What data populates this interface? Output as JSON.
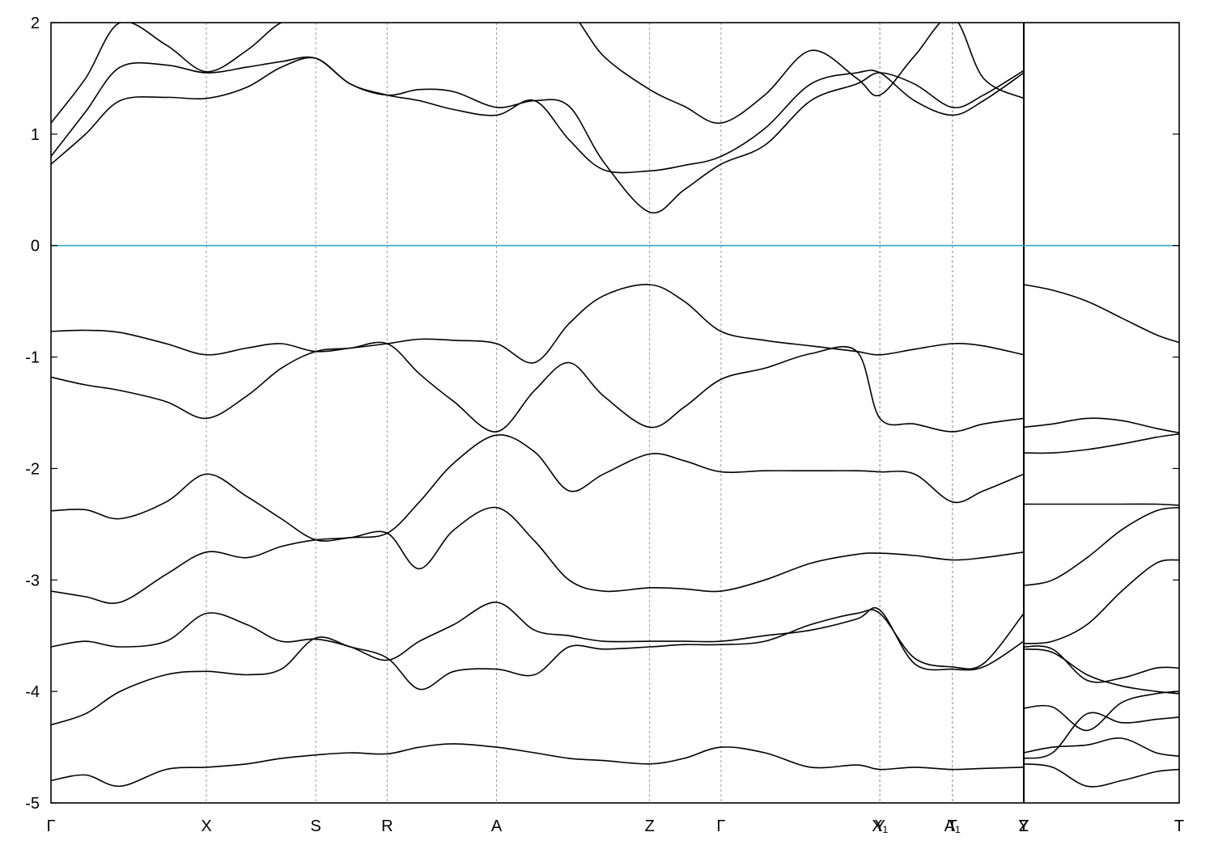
{
  "chart_data": {
    "type": "line",
    "title": "",
    "xlabel": "",
    "ylabel": "",
    "ylim": [
      -5,
      2
    ],
    "y_ticks": [
      "2",
      "1",
      "0",
      "-1",
      "-2",
      "-3",
      "-4",
      "-5"
    ],
    "y_tick_values": [
      2,
      1,
      0,
      -1,
      -2,
      -3,
      -4,
      -5
    ],
    "fermi_level": 0,
    "colors": {
      "bands": "#000000",
      "fermi": "#3aa6c6",
      "gridlines": "#999999"
    },
    "x_points": [
      "Γ",
      "X",
      "S",
      "R",
      "A",
      "Z",
      "Γ",
      "Y",
      "X₁",
      "A₁",
      "T",
      "Y",
      "Z",
      "T"
    ],
    "x_positions": [
      0,
      1.35,
      2.3,
      2.92,
      3.87,
      5.2,
      5.82,
      7.2,
      7.2,
      7.83,
      7.83,
      8.45,
      8.45,
      9.8
    ],
    "xlim": [
      0,
      9.8
    ],
    "path_break_at": 8.45,
    "series": [
      {
        "name": "",
        "x": [
          0,
          0.3,
          0.6,
          1.0,
          1.35,
          1.7,
          2.0,
          2.3,
          2.6,
          2.92,
          3.2,
          3.5,
          3.87,
          4.2,
          4.5,
          4.8,
          5.2,
          5.5,
          5.82,
          6.2,
          6.6,
          7.0,
          7.2,
          7.5,
          7.83,
          8.1,
          8.45
        ],
        "y": [
          -4.8,
          -4.75,
          -4.85,
          -4.7,
          -4.68,
          -4.65,
          -4.6,
          -4.57,
          -4.55,
          -4.56,
          -4.5,
          -4.47,
          -4.5,
          -4.55,
          -4.6,
          -4.62,
          -4.65,
          -4.6,
          -4.5,
          -4.55,
          -4.68,
          -4.66,
          -4.7,
          -4.68,
          -4.7,
          -4.69,
          -4.68
        ]
      },
      {
        "name": "",
        "x": [
          0,
          0.3,
          0.6,
          1.0,
          1.35,
          1.7,
          2.0,
          2.3,
          2.6,
          2.92,
          3.2,
          3.5,
          3.87,
          4.2,
          4.5,
          4.8,
          5.2,
          5.5,
          5.82,
          6.2,
          6.6,
          7.0,
          7.2,
          7.5,
          7.83,
          8.1,
          8.45
        ],
        "y": [
          -4.3,
          -4.2,
          -4.0,
          -3.85,
          -3.82,
          -3.85,
          -3.8,
          -3.52,
          -3.6,
          -3.7,
          -3.98,
          -3.82,
          -3.8,
          -3.85,
          -3.6,
          -3.62,
          -3.6,
          -3.58,
          -3.58,
          -3.55,
          -3.4,
          -3.3,
          -3.3,
          -3.7,
          -3.78,
          -3.75,
          -3.3
        ]
      },
      {
        "name": "",
        "x": [
          0,
          0.3,
          0.6,
          1.0,
          1.35,
          1.7,
          2.0,
          2.3,
          2.6,
          2.92,
          3.2,
          3.5,
          3.87,
          4.2,
          4.5,
          4.8,
          5.2,
          5.5,
          5.82,
          6.2,
          6.6,
          7.0,
          7.2,
          7.5,
          7.83,
          8.1,
          8.45
        ],
        "y": [
          -3.6,
          -3.55,
          -3.6,
          -3.55,
          -3.3,
          -3.4,
          -3.55,
          -3.53,
          -3.6,
          -3.72,
          -3.55,
          -3.4,
          -3.2,
          -3.45,
          -3.5,
          -3.55,
          -3.55,
          -3.55,
          -3.55,
          -3.5,
          -3.45,
          -3.35,
          -3.27,
          -3.75,
          -3.8,
          -3.78,
          -3.55
        ]
      },
      {
        "name": "",
        "x": [
          0,
          0.3,
          0.6,
          1.0,
          1.35,
          1.7,
          2.0,
          2.3,
          2.6,
          2.92,
          3.2,
          3.5,
          3.87,
          4.2,
          4.5,
          4.8,
          5.2,
          5.5,
          5.82,
          6.2,
          6.6,
          7.0,
          7.2,
          7.5,
          7.83,
          8.1,
          8.45
        ],
        "y": [
          -3.1,
          -3.15,
          -3.2,
          -2.95,
          -2.75,
          -2.8,
          -2.7,
          -2.64,
          -2.62,
          -2.58,
          -2.9,
          -2.55,
          -2.35,
          -2.65,
          -3.0,
          -3.1,
          -3.07,
          -3.08,
          -3.1,
          -3.0,
          -2.85,
          -2.77,
          -2.76,
          -2.78,
          -2.82,
          -2.8,
          -2.75
        ]
      },
      {
        "name": "",
        "x": [
          0,
          0.3,
          0.6,
          1.0,
          1.35,
          1.7,
          2.0,
          2.3,
          2.6,
          2.92,
          3.2,
          3.5,
          3.87,
          4.2,
          4.5,
          4.8,
          5.2,
          5.5,
          5.82,
          6.2,
          6.6,
          7.0,
          7.2,
          7.5,
          7.83,
          8.1,
          8.45
        ],
        "y": [
          -2.38,
          -2.37,
          -2.45,
          -2.3,
          -2.05,
          -2.25,
          -2.45,
          -2.64,
          -2.62,
          -2.58,
          -2.3,
          -1.95,
          -1.7,
          -1.85,
          -2.2,
          -2.05,
          -1.87,
          -1.93,
          -2.03,
          -2.02,
          -2.02,
          -2.02,
          -2.03,
          -2.05,
          -2.3,
          -2.2,
          -2.05
        ]
      },
      {
        "name": "",
        "x": [
          0,
          0.3,
          0.6,
          1.0,
          1.35,
          1.7,
          2.0,
          2.3,
          2.6,
          2.92,
          3.2,
          3.5,
          3.87,
          4.2,
          4.5,
          4.8,
          5.2,
          5.5,
          5.82,
          6.2,
          6.6,
          7.0,
          7.2,
          7.5,
          7.83,
          8.1,
          8.45
        ],
        "y": [
          -1.18,
          -1.25,
          -1.3,
          -1.4,
          -1.55,
          -1.35,
          -1.1,
          -0.95,
          -0.92,
          -0.88,
          -1.15,
          -1.4,
          -1.67,
          -1.3,
          -1.05,
          -1.35,
          -1.63,
          -1.45,
          -1.2,
          -1.1,
          -0.97,
          -0.95,
          -1.55,
          -1.6,
          -1.67,
          -1.6,
          -1.55
        ]
      },
      {
        "name": "",
        "x": [
          0,
          0.3,
          0.6,
          1.0,
          1.35,
          1.7,
          2.0,
          2.3,
          2.6,
          2.92,
          3.2,
          3.5,
          3.87,
          4.2,
          4.5,
          4.8,
          5.2,
          5.5,
          5.82,
          6.2,
          6.6,
          7.0,
          7.2,
          7.5,
          7.83,
          8.1,
          8.45
        ],
        "y": [
          -0.77,
          -0.76,
          -0.78,
          -0.88,
          -0.98,
          -0.92,
          -0.88,
          -0.95,
          -0.92,
          -0.88,
          -0.84,
          -0.85,
          -0.88,
          -1.05,
          -0.7,
          -0.45,
          -0.35,
          -0.5,
          -0.77,
          -0.85,
          -0.9,
          -0.95,
          -0.98,
          -0.93,
          -0.88,
          -0.9,
          -0.98
        ]
      },
      {
        "name": "",
        "x": [
          0,
          0.3,
          0.6,
          1.0,
          1.35,
          1.7,
          2.0,
          2.3,
          2.6,
          2.92,
          3.2,
          3.5,
          3.87,
          4.2,
          4.5,
          4.8,
          5.2,
          5.5,
          5.82,
          6.2,
          6.6,
          7.0,
          7.2,
          7.5,
          7.83,
          8.1,
          8.45
        ],
        "y": [
          0.73,
          1.0,
          1.3,
          1.33,
          1.32,
          1.42,
          1.6,
          1.68,
          1.45,
          1.35,
          1.3,
          1.22,
          1.17,
          1.3,
          0.95,
          0.68,
          0.67,
          0.72,
          0.8,
          1.05,
          1.45,
          1.55,
          1.55,
          1.3,
          1.17,
          1.3,
          1.55
        ]
      },
      {
        "name": "",
        "x": [
          0,
          0.3,
          0.6,
          1.0,
          1.35,
          1.7,
          2.0,
          2.3,
          2.6,
          2.92,
          3.2,
          3.5,
          3.87,
          4.2,
          4.5,
          4.8,
          5.2,
          5.5,
          5.82,
          6.2,
          6.6,
          7.0,
          7.2,
          7.5,
          7.83,
          8.1,
          8.45
        ],
        "y": [
          0.8,
          1.2,
          1.6,
          1.62,
          1.55,
          1.6,
          1.65,
          1.68,
          1.45,
          1.35,
          1.4,
          1.38,
          1.24,
          1.3,
          1.25,
          0.75,
          0.3,
          0.5,
          0.73,
          0.9,
          1.3,
          1.45,
          1.55,
          1.45,
          1.24,
          1.35,
          1.57
        ]
      },
      {
        "name": "",
        "x": [
          0,
          0.3,
          0.6,
          1.0,
          1.35,
          1.7,
          2.0,
          2.3,
          2.6,
          2.92,
          3.2,
          3.5,
          3.87,
          4.2,
          4.5,
          4.8,
          5.2,
          5.5,
          5.82,
          6.2,
          6.6,
          7.0,
          7.2,
          7.5,
          7.83,
          8.1,
          8.45
        ],
        "y": [
          1.1,
          1.5,
          2.0,
          1.8,
          1.56,
          1.75,
          2.0,
          2.05,
          2.1,
          2.1,
          2.1,
          2.1,
          2.1,
          2.1,
          2.1,
          1.7,
          1.4,
          1.25,
          1.1,
          1.35,
          1.75,
          1.5,
          1.35,
          1.7,
          2.05,
          1.5,
          1.32
        ]
      },
      {
        "name": "",
        "x": [
          8.45,
          8.7,
          9.0,
          9.3,
          9.6,
          9.8
        ],
        "y": [
          -0.35,
          -0.4,
          -0.5,
          -0.65,
          -0.8,
          -0.87
        ]
      },
      {
        "name": "",
        "x": [
          8.45,
          8.7,
          9.0,
          9.3,
          9.6,
          9.8
        ],
        "y": [
          -1.63,
          -1.6,
          -1.55,
          -1.57,
          -1.64,
          -1.68
        ]
      },
      {
        "name": "",
        "x": [
          8.45,
          8.7,
          9.0,
          9.3,
          9.6,
          9.8
        ],
        "y": [
          -1.86,
          -1.86,
          -1.83,
          -1.78,
          -1.72,
          -1.69
        ]
      },
      {
        "name": "",
        "x": [
          8.45,
          8.7,
          9.0,
          9.3,
          9.6,
          9.8
        ],
        "y": [
          -2.32,
          -2.32,
          -2.32,
          -2.32,
          -2.32,
          -2.33
        ]
      },
      {
        "name": "",
        "x": [
          8.45,
          8.7,
          9.0,
          9.3,
          9.6,
          9.8
        ],
        "y": [
          -3.05,
          -3.0,
          -2.8,
          -2.55,
          -2.38,
          -2.35
        ]
      },
      {
        "name": "",
        "x": [
          8.45,
          8.7,
          9.0,
          9.3,
          9.6,
          9.8
        ],
        "y": [
          -3.57,
          -3.55,
          -3.4,
          -3.1,
          -2.85,
          -2.82
        ]
      },
      {
        "name": "",
        "x": [
          8.45,
          8.7,
          9.0,
          9.3,
          9.6,
          9.8
        ],
        "y": [
          -3.62,
          -3.65,
          -3.85,
          -3.95,
          -4.0,
          -4.02
        ]
      },
      {
        "name": "",
        "x": [
          8.45,
          8.7,
          9.0,
          9.3,
          9.6,
          9.8
        ],
        "y": [
          -3.6,
          -3.62,
          -3.9,
          -3.88,
          -3.79,
          -3.79
        ]
      },
      {
        "name": "",
        "x": [
          8.45,
          8.7,
          9.0,
          9.3,
          9.6,
          9.8
        ],
        "y": [
          -4.15,
          -4.14,
          -4.35,
          -4.1,
          -4.02,
          -4.0
        ]
      },
      {
        "name": "",
        "x": [
          8.45,
          8.7,
          9.0,
          9.3,
          9.6,
          9.8
        ],
        "y": [
          -4.6,
          -4.55,
          -4.2,
          -4.28,
          -4.25,
          -4.23
        ]
      },
      {
        "name": "",
        "x": [
          8.45,
          8.7,
          9.0,
          9.3,
          9.6,
          9.8
        ],
        "y": [
          -4.55,
          -4.5,
          -4.48,
          -4.42,
          -4.55,
          -4.58
        ]
      },
      {
        "name": "",
        "x": [
          8.45,
          8.7,
          9.0,
          9.3,
          9.6,
          9.8
        ],
        "y": [
          -4.65,
          -4.68,
          -4.85,
          -4.8,
          -4.72,
          -4.7
        ]
      }
    ]
  }
}
